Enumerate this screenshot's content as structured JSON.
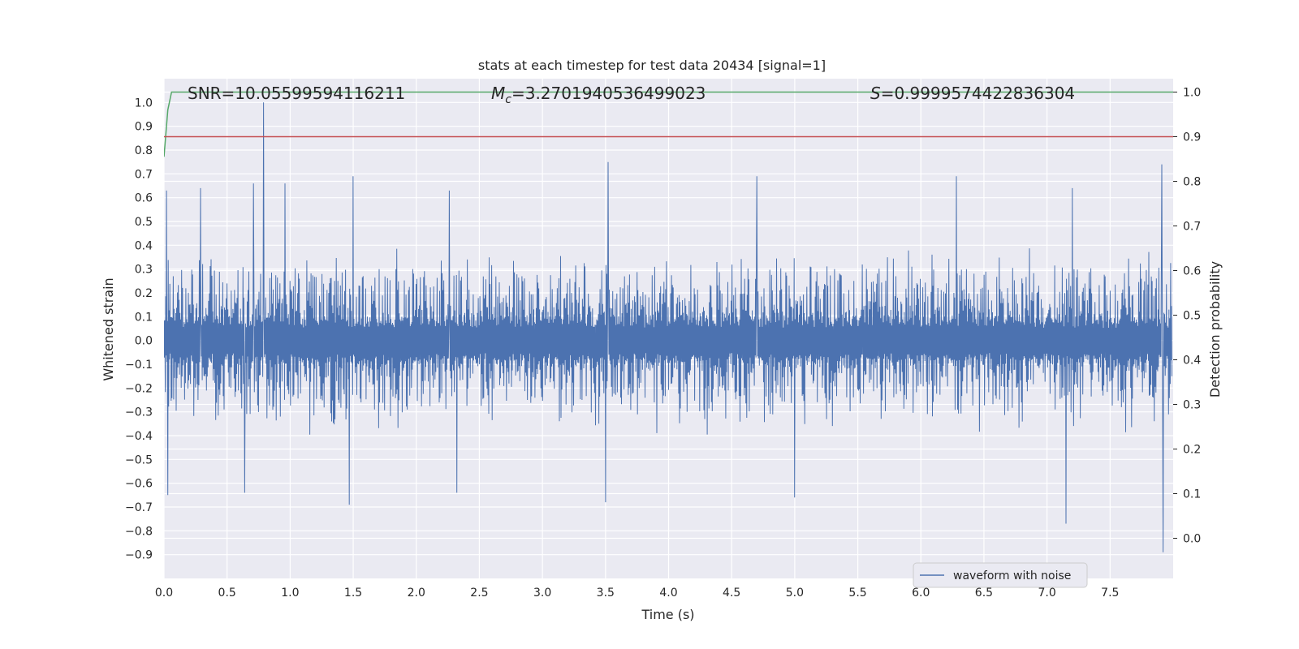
{
  "chart_data": {
    "type": "line",
    "title": "stats at each timestep for test data 20434 [signal=1]",
    "xlabel": "Time (s)",
    "ylabel": "Whitened strain",
    "y2label": "Detection probability",
    "xlim": [
      0.0,
      8.0
    ],
    "ylim": [
      -1.0,
      1.1
    ],
    "y2lim": [
      -0.09,
      1.03
    ],
    "xticks": [
      0.0,
      0.5,
      1.0,
      1.5,
      2.0,
      2.5,
      3.0,
      3.5,
      4.0,
      4.5,
      5.0,
      5.5,
      6.0,
      6.5,
      7.0,
      7.5
    ],
    "yticks": [
      -0.9,
      -0.8,
      -0.7,
      -0.6,
      -0.5,
      -0.4,
      -0.3,
      -0.2,
      -0.1,
      0.0,
      0.1,
      0.2,
      0.3,
      0.4,
      0.5,
      0.6,
      0.7,
      0.8,
      0.9,
      1.0
    ],
    "y2ticks": [
      0.0,
      0.1,
      0.2,
      0.3,
      0.4,
      0.5,
      0.6,
      0.7,
      0.8,
      0.9,
      1.0
    ],
    "grid": true,
    "legend_position": "lower-right",
    "annotations": {
      "snr": "SNR=10.05599594116211",
      "mc_symbol": "M",
      "mc_sub": "c",
      "mc_value": "=3.2701940536499023",
      "s_symbol": "S",
      "s_value": "=0.9999574422836304"
    },
    "series": [
      {
        "name": "waveform with noise",
        "axis": "left",
        "color": "#4c72b0",
        "kind": "noisy-strain",
        "typical_envelope": [
          -0.25,
          0.25
        ],
        "max": {
          "x": 0.79,
          "y": 1.0
        },
        "min": {
          "x": 7.92,
          "y": -0.89
        },
        "peaks": [
          {
            "x": 0.02,
            "y": 0.63
          },
          {
            "x": 0.29,
            "y": 0.64
          },
          {
            "x": 0.71,
            "y": 0.66
          },
          {
            "x": 0.96,
            "y": 0.66
          },
          {
            "x": 1.5,
            "y": 0.69
          },
          {
            "x": 2.26,
            "y": 0.63
          },
          {
            "x": 3.52,
            "y": 0.75
          },
          {
            "x": 4.7,
            "y": 0.69
          },
          {
            "x": 6.28,
            "y": 0.69
          },
          {
            "x": 7.2,
            "y": 0.64
          },
          {
            "x": 7.91,
            "y": 0.74
          }
        ],
        "troughs": [
          {
            "x": 0.03,
            "y": -0.65
          },
          {
            "x": 0.64,
            "y": -0.64
          },
          {
            "x": 1.47,
            "y": -0.69
          },
          {
            "x": 2.32,
            "y": -0.64
          },
          {
            "x": 3.5,
            "y": -0.68
          },
          {
            "x": 5.0,
            "y": -0.66
          },
          {
            "x": 7.15,
            "y": -0.77
          },
          {
            "x": 7.92,
            "y": -0.89
          }
        ]
      },
      {
        "name": "",
        "axis": "right",
        "color": "#55a868",
        "x": [
          0.0,
          0.03,
          0.06,
          0.08,
          8.0
        ],
        "y": [
          0.855,
          0.96,
          1.0,
          1.0,
          1.0
        ]
      },
      {
        "name": "",
        "axis": "right",
        "color": "#c44e52",
        "x": [
          0.0,
          8.0
        ],
        "y": [
          0.9,
          0.9
        ]
      }
    ]
  }
}
